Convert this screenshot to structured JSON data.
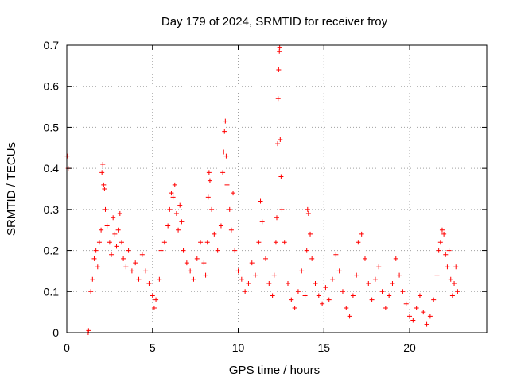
{
  "chart_data": {
    "type": "scatter",
    "title": "Day 179 of 2024, SRMTID for receiver froy",
    "xlabel": "GPS time / hours",
    "ylabel": "SRMTID / TECUs",
    "xlim": [
      0,
      24.5
    ],
    "ylim": [
      0,
      0.7
    ],
    "xticks": [
      0,
      5,
      10,
      15,
      20
    ],
    "yticks": [
      0,
      0.1,
      0.2,
      0.3,
      0.4,
      0.5,
      0.6,
      0.7
    ],
    "x_tick_labels": [
      "0",
      "5",
      "10",
      "15",
      "20"
    ],
    "y_tick_labels": [
      "0",
      "0.1",
      "0.2",
      "0.3",
      "0.4",
      "0.5",
      "0.6",
      "0.7"
    ],
    "grid": true,
    "marker": "+",
    "color": "#ff0000",
    "series": [
      {
        "name": "SRMTID",
        "points": [
          [
            0.02,
            0.43
          ],
          [
            0.08,
            0.4
          ],
          [
            1.25,
            0.0
          ],
          [
            1.27,
            0.005
          ],
          [
            1.4,
            0.1
          ],
          [
            1.5,
            0.13
          ],
          [
            1.6,
            0.18
          ],
          [
            1.7,
            0.2
          ],
          [
            1.8,
            0.16
          ],
          [
            1.9,
            0.22
          ],
          [
            2.0,
            0.25
          ],
          [
            2.05,
            0.39
          ],
          [
            2.1,
            0.41
          ],
          [
            2.15,
            0.36
          ],
          [
            2.2,
            0.35
          ],
          [
            2.25,
            0.3
          ],
          [
            2.35,
            0.26
          ],
          [
            2.5,
            0.22
          ],
          [
            2.6,
            0.19
          ],
          [
            2.7,
            0.28
          ],
          [
            2.8,
            0.24
          ],
          [
            2.9,
            0.21
          ],
          [
            3.0,
            0.25
          ],
          [
            3.1,
            0.29
          ],
          [
            3.2,
            0.22
          ],
          [
            3.3,
            0.18
          ],
          [
            3.45,
            0.16
          ],
          [
            3.6,
            0.2
          ],
          [
            3.8,
            0.15
          ],
          [
            4.0,
            0.17
          ],
          [
            4.2,
            0.13
          ],
          [
            4.4,
            0.19
          ],
          [
            4.6,
            0.15
          ],
          [
            4.8,
            0.12
          ],
          [
            5.0,
            0.09
          ],
          [
            5.1,
            0.06
          ],
          [
            5.2,
            0.08
          ],
          [
            5.4,
            0.13
          ],
          [
            5.5,
            0.2
          ],
          [
            5.7,
            0.22
          ],
          [
            5.9,
            0.26
          ],
          [
            6.0,
            0.3
          ],
          [
            6.1,
            0.34
          ],
          [
            6.2,
            0.33
          ],
          [
            6.3,
            0.36
          ],
          [
            6.4,
            0.29
          ],
          [
            6.5,
            0.25
          ],
          [
            6.6,
            0.31
          ],
          [
            6.7,
            0.27
          ],
          [
            6.8,
            0.2
          ],
          [
            7.0,
            0.17
          ],
          [
            7.2,
            0.15
          ],
          [
            7.4,
            0.13
          ],
          [
            7.6,
            0.18
          ],
          [
            7.8,
            0.22
          ],
          [
            8.0,
            0.17
          ],
          [
            8.1,
            0.14
          ],
          [
            8.2,
            0.22
          ],
          [
            8.25,
            0.33
          ],
          [
            8.3,
            0.39
          ],
          [
            8.35,
            0.37
          ],
          [
            8.45,
            0.3
          ],
          [
            8.6,
            0.24
          ],
          [
            8.8,
            0.2
          ],
          [
            9.0,
            0.26
          ],
          [
            9.1,
            0.39
          ],
          [
            9.15,
            0.44
          ],
          [
            9.2,
            0.49
          ],
          [
            9.25,
            0.515
          ],
          [
            9.3,
            0.43
          ],
          [
            9.35,
            0.36
          ],
          [
            9.5,
            0.3
          ],
          [
            9.6,
            0.25
          ],
          [
            9.7,
            0.34
          ],
          [
            9.8,
            0.2
          ],
          [
            10.0,
            0.15
          ],
          [
            10.2,
            0.13
          ],
          [
            10.4,
            0.1
          ],
          [
            10.6,
            0.12
          ],
          [
            10.8,
            0.17
          ],
          [
            11.0,
            0.14
          ],
          [
            11.2,
            0.22
          ],
          [
            11.3,
            0.32
          ],
          [
            11.4,
            0.27
          ],
          [
            11.6,
            0.18
          ],
          [
            11.8,
            0.12
          ],
          [
            12.0,
            0.09
          ],
          [
            12.1,
            0.14
          ],
          [
            12.2,
            0.22
          ],
          [
            12.25,
            0.28
          ],
          [
            12.3,
            0.46
          ],
          [
            12.33,
            0.57
          ],
          [
            12.36,
            0.64
          ],
          [
            12.4,
            0.685
          ],
          [
            12.42,
            0.695
          ],
          [
            12.45,
            0.47
          ],
          [
            12.5,
            0.38
          ],
          [
            12.55,
            0.3
          ],
          [
            12.7,
            0.22
          ],
          [
            12.9,
            0.12
          ],
          [
            13.1,
            0.08
          ],
          [
            13.3,
            0.06
          ],
          [
            13.5,
            0.1
          ],
          [
            13.7,
            0.15
          ],
          [
            13.9,
            0.09
          ],
          [
            14.0,
            0.2
          ],
          [
            14.05,
            0.3
          ],
          [
            14.1,
            0.29
          ],
          [
            14.2,
            0.24
          ],
          [
            14.3,
            0.18
          ],
          [
            14.5,
            0.12
          ],
          [
            14.7,
            0.09
          ],
          [
            14.9,
            0.07
          ],
          [
            15.1,
            0.11
          ],
          [
            15.3,
            0.08
          ],
          [
            15.5,
            0.13
          ],
          [
            15.7,
            0.19
          ],
          [
            15.9,
            0.15
          ],
          [
            16.1,
            0.1
          ],
          [
            16.3,
            0.06
          ],
          [
            16.5,
            0.04
          ],
          [
            16.7,
            0.09
          ],
          [
            16.9,
            0.14
          ],
          [
            17.0,
            0.22
          ],
          [
            17.2,
            0.24
          ],
          [
            17.4,
            0.18
          ],
          [
            17.6,
            0.12
          ],
          [
            17.8,
            0.08
          ],
          [
            18.0,
            0.13
          ],
          [
            18.2,
            0.16
          ],
          [
            18.4,
            0.1
          ],
          [
            18.6,
            0.06
          ],
          [
            18.8,
            0.09
          ],
          [
            19.0,
            0.12
          ],
          [
            19.2,
            0.18
          ],
          [
            19.4,
            0.14
          ],
          [
            19.6,
            0.1
          ],
          [
            19.8,
            0.07
          ],
          [
            20.0,
            0.04
          ],
          [
            20.2,
            0.03
          ],
          [
            20.4,
            0.06
          ],
          [
            20.6,
            0.09
          ],
          [
            20.8,
            0.05
          ],
          [
            21.0,
            0.02
          ],
          [
            21.2,
            0.04
          ],
          [
            21.4,
            0.08
          ],
          [
            21.6,
            0.14
          ],
          [
            21.7,
            0.2
          ],
          [
            21.8,
            0.22
          ],
          [
            21.9,
            0.25
          ],
          [
            22.0,
            0.24
          ],
          [
            22.1,
            0.19
          ],
          [
            22.2,
            0.16
          ],
          [
            22.3,
            0.2
          ],
          [
            22.4,
            0.13
          ],
          [
            22.5,
            0.09
          ],
          [
            22.6,
            0.12
          ],
          [
            22.7,
            0.16
          ],
          [
            22.8,
            0.1
          ]
        ]
      }
    ]
  }
}
